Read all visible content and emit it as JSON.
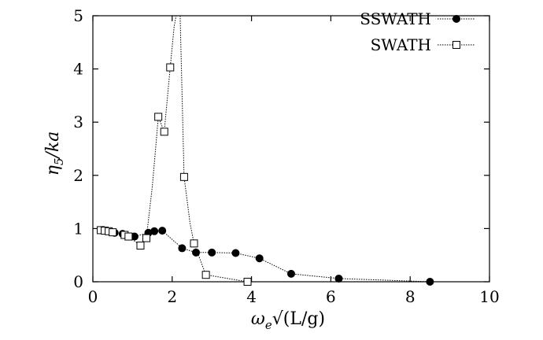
{
  "chart_data": {
    "type": "line",
    "title": "",
    "xlabel_parts": [
      "ω",
      "e",
      "√(L/g)"
    ],
    "ylabel_parts": [
      "η",
      "5",
      "/ka"
    ],
    "xlim": [
      0,
      10
    ],
    "ylim": [
      0,
      5
    ],
    "xticks": [
      "0",
      "2",
      "4",
      "6",
      "8",
      "10"
    ],
    "yticks": [
      "0",
      "1",
      "2",
      "3",
      "4",
      "5"
    ],
    "grid": false,
    "legend_position": "top-right",
    "series": [
      {
        "name": "SSWATH",
        "marker": "filled-circle",
        "line": "dotted",
        "color": "#000000",
        "points": [
          [
            0.25,
            0.97
          ],
          [
            0.35,
            0.96
          ],
          [
            0.45,
            0.94
          ],
          [
            0.55,
            0.92
          ],
          [
            0.75,
            0.9
          ],
          [
            1.05,
            0.85
          ],
          [
            1.4,
            0.92
          ],
          [
            1.55,
            0.95
          ],
          [
            1.75,
            0.96
          ],
          [
            2.25,
            0.63
          ],
          [
            2.6,
            0.55
          ],
          [
            3.0,
            0.55
          ],
          [
            3.6,
            0.54
          ],
          [
            4.2,
            0.44
          ],
          [
            5.0,
            0.15
          ],
          [
            6.2,
            0.06
          ],
          [
            8.5,
            0.0
          ]
        ]
      },
      {
        "name": "SWATH",
        "marker": "open-square",
        "line": "dotted",
        "color": "#000000",
        "points": [
          [
            0.2,
            0.97
          ],
          [
            0.3,
            0.96
          ],
          [
            0.4,
            0.95
          ],
          [
            0.5,
            0.93
          ],
          [
            0.8,
            0.88
          ],
          [
            0.9,
            0.85
          ],
          [
            1.2,
            0.68
          ],
          [
            1.35,
            0.82
          ],
          [
            1.65,
            3.1
          ],
          [
            1.8,
            2.82
          ],
          [
            1.95,
            4.03
          ],
          [
            2.3,
            1.97
          ],
          [
            2.55,
            0.72
          ],
          [
            2.85,
            0.13
          ],
          [
            3.9,
            0.0
          ]
        ],
        "curve": [
          [
            1.35,
            0.82
          ],
          [
            1.5,
            1.8
          ],
          [
            1.65,
            3.1
          ],
          [
            1.8,
            2.82
          ],
          [
            1.95,
            4.03
          ],
          [
            2.05,
            4.8
          ],
          [
            2.1,
            5.0
          ],
          [
            2.2,
            5.0
          ],
          [
            2.25,
            3.5
          ],
          [
            2.3,
            1.97
          ],
          [
            2.45,
            1.1
          ],
          [
            2.55,
            0.72
          ]
        ]
      }
    ]
  }
}
